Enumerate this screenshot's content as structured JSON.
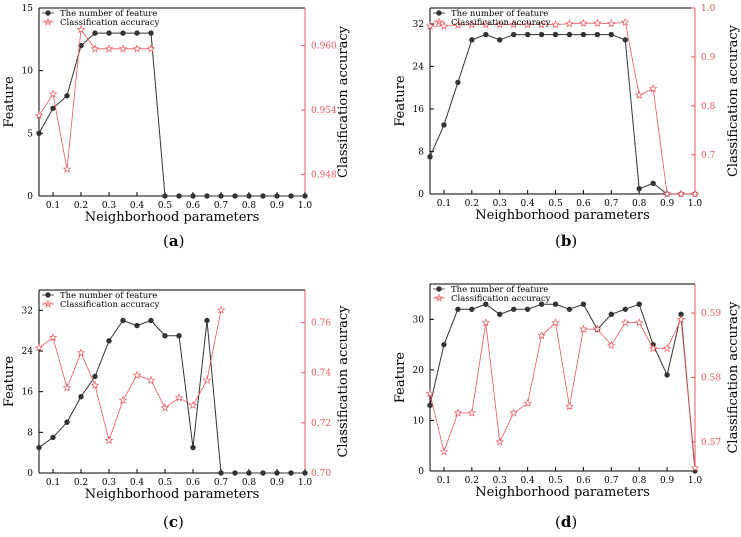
{
  "figure": {
    "panels": [
      {
        "label_open": "(",
        "label_letter": "a",
        "label_close": ")"
      },
      {
        "label_open": "(",
        "label_letter": "b",
        "label_close": ")"
      },
      {
        "label_open": "(",
        "label_letter": "c",
        "label_close": ")"
      },
      {
        "label_open": "(",
        "label_letter": "d",
        "label_close": ")"
      }
    ]
  },
  "chart_data": [
    {
      "type": "line",
      "xlabel": "Neighborhood parameters",
      "ylabel_left": "Feature",
      "ylabel_right": "Classification accuracy",
      "x_ticks": [
        "0.1",
        "0.2",
        "0.3",
        "0.4",
        "0.5",
        "0.6",
        "0.7",
        "0.8",
        "0.9",
        "1.0"
      ],
      "xlim": [
        0.05,
        1.0
      ],
      "left_ticks": [
        "0",
        "5",
        "10",
        "15"
      ],
      "left_ylim": [
        0,
        15
      ],
      "right_ticks": [
        "0.948",
        "0.954",
        "0.960"
      ],
      "right_ylim": [
        0.946,
        0.9635
      ],
      "legend": [
        "The number of feature",
        "Classification accuracy"
      ],
      "colors": {
        "feature": "#333333",
        "accuracy": "#e8595f",
        "right_axis": "#e8595f"
      },
      "series": [
        {
          "name": "The number of feature",
          "axis": "left",
          "marker": "dot",
          "x": [
            0.05,
            0.1,
            0.15,
            0.2,
            0.25,
            0.3,
            0.35,
            0.4,
            0.45,
            0.5,
            0.55,
            0.6,
            0.65,
            0.7,
            0.75,
            0.8,
            0.85,
            0.9,
            0.95,
            1.0
          ],
          "values": [
            5,
            7,
            8,
            12,
            13,
            13,
            13,
            13,
            13,
            0,
            0,
            0,
            0,
            0,
            0,
            0,
            0,
            0,
            0,
            0
          ]
        },
        {
          "name": "Classification accuracy",
          "axis": "right",
          "marker": "star",
          "x": [
            0.05,
            0.1,
            0.15,
            0.2,
            0.25,
            0.3,
            0.35,
            0.4,
            0.45
          ],
          "values": [
            0.9535,
            0.9555,
            0.9485,
            0.9615,
            0.9597,
            0.9597,
            0.9597,
            0.9597,
            0.9597
          ]
        }
      ]
    },
    {
      "type": "line",
      "xlabel": "Neighborhood parameters",
      "ylabel_left": "Feature",
      "ylabel_right": "Classification accuracy",
      "x_ticks": [
        "0.1",
        "0.2",
        "0.3",
        "0.4",
        "0.5",
        "0.6",
        "0.7",
        "0.8",
        "0.9",
        "1.0"
      ],
      "xlim": [
        0.05,
        1.0
      ],
      "left_ticks": [
        "0",
        "8",
        "16",
        "24",
        "32"
      ],
      "left_ylim": [
        0,
        35
      ],
      "right_ticks": [
        "0.7",
        "0.8",
        "0.9",
        "1.0"
      ],
      "right_ylim": [
        0.62,
        1.0
      ],
      "legend": [
        "The number of feature",
        "Classification accuracy"
      ],
      "colors": {
        "feature": "#333333",
        "accuracy": "#e8595f",
        "right_axis": "#e8595f"
      },
      "series": [
        {
          "name": "The number of feature",
          "axis": "left",
          "marker": "dot",
          "x": [
            0.05,
            0.1,
            0.15,
            0.2,
            0.25,
            0.3,
            0.35,
            0.4,
            0.45,
            0.5,
            0.55,
            0.6,
            0.65,
            0.7,
            0.75,
            0.8,
            0.85,
            0.9,
            0.95,
            1.0
          ],
          "values": [
            7,
            13,
            21,
            29,
            30,
            29,
            30,
            30,
            30,
            30,
            30,
            30,
            30,
            30,
            29,
            1,
            2,
            0,
            0,
            0
          ]
        },
        {
          "name": "Classification accuracy",
          "axis": "right",
          "marker": "star",
          "x": [
            0.05,
            0.1,
            0.15,
            0.2,
            0.25,
            0.3,
            0.35,
            0.4,
            0.45,
            0.5,
            0.55,
            0.6,
            0.65,
            0.7,
            0.75,
            0.8,
            0.85,
            0.9,
            0.95,
            1.0
          ],
          "values": [
            0.963,
            0.963,
            0.965,
            0.966,
            0.966,
            0.966,
            0.966,
            0.966,
            0.966,
            0.966,
            0.968,
            0.969,
            0.969,
            0.968,
            0.971,
            0.822,
            0.835,
            0.62,
            0.62,
            0.62
          ]
        }
      ]
    },
    {
      "type": "line",
      "xlabel": "Neighborhood parameters",
      "ylabel_left": "Feature",
      "ylabel_right": "Classification accuracy",
      "x_ticks": [
        "0.1",
        "0.2",
        "0.3",
        "0.4",
        "0.5",
        "0.6",
        "0.7",
        "0.8",
        "0.9",
        "1.0"
      ],
      "xlim": [
        0.05,
        1.0
      ],
      "left_ticks": [
        "0",
        "8",
        "16",
        "24",
        "32"
      ],
      "left_ylim": [
        0,
        36
      ],
      "right_ticks": [
        "0.70",
        "0.72",
        "0.74",
        "0.76"
      ],
      "right_ylim": [
        0.7,
        0.773
      ],
      "legend": [
        "The number of feature",
        "Classification accuracy"
      ],
      "colors": {
        "feature": "#333333",
        "accuracy": "#e8595f",
        "right_axis": "#e8595f"
      },
      "series": [
        {
          "name": "The number of feature",
          "axis": "left",
          "marker": "dot",
          "x": [
            0.05,
            0.1,
            0.15,
            0.2,
            0.25,
            0.3,
            0.35,
            0.4,
            0.45,
            0.5,
            0.55,
            0.6,
            0.65,
            0.7,
            0.75,
            0.8,
            0.85,
            0.9,
            0.95,
            1.0
          ],
          "values": [
            5,
            7,
            10,
            15,
            19,
            26,
            30,
            29,
            30,
            27,
            27,
            5,
            30,
            0,
            0,
            0,
            0,
            0,
            0,
            0
          ]
        },
        {
          "name": "Classification accuracy",
          "axis": "right",
          "marker": "star",
          "x": [
            0.05,
            0.1,
            0.15,
            0.2,
            0.25,
            0.3,
            0.35,
            0.4,
            0.45,
            0.5,
            0.55,
            0.6,
            0.65,
            0.7
          ],
          "values": [
            0.75,
            0.754,
            0.734,
            0.748,
            0.735,
            0.713,
            0.729,
            0.739,
            0.737,
            0.726,
            0.73,
            0.727,
            0.737,
            0.765
          ]
        }
      ]
    },
    {
      "type": "line",
      "xlabel": "Neighborhood parameters",
      "ylabel_left": "Feature",
      "ylabel_right": "Classification accuracy",
      "x_ticks": [
        "0.1",
        "0.2",
        "0.3",
        "0.4",
        "0.5",
        "0.6",
        "0.7",
        "0.8",
        "0.9",
        "1.0"
      ],
      "xlim": [
        0.05,
        1.0
      ],
      "left_ticks": [
        "0",
        "10",
        "20",
        "30"
      ],
      "left_ylim": [
        0,
        37
      ],
      "right_ticks": [
        "0.57",
        "0.58",
        "0.59"
      ],
      "right_ylim": [
        0.5655,
        0.5945
      ],
      "legend": [
        "The number of feature",
        "Classification accuracy"
      ],
      "colors": {
        "feature": "#333333",
        "accuracy": "#e8595f",
        "right_axis": "#e8595f"
      },
      "series": [
        {
          "name": "The number of feature",
          "axis": "left",
          "marker": "dot",
          "x": [
            0.05,
            0.1,
            0.15,
            0.2,
            0.25,
            0.3,
            0.35,
            0.4,
            0.45,
            0.5,
            0.55,
            0.6,
            0.65,
            0.7,
            0.75,
            0.8,
            0.85,
            0.9,
            0.95,
            1.0
          ],
          "values": [
            13,
            25,
            32,
            32,
            33,
            31,
            32,
            32,
            33,
            33,
            32,
            33,
            28,
            31,
            32,
            33,
            25,
            19,
            31,
            0
          ]
        },
        {
          "name": "Classification accuracy",
          "axis": "right",
          "marker": "star",
          "x": [
            0.05,
            0.1,
            0.15,
            0.2,
            0.25,
            0.3,
            0.35,
            0.4,
            0.45,
            0.5,
            0.55,
            0.6,
            0.65,
            0.7,
            0.75,
            0.8,
            0.85,
            0.9,
            0.95,
            1.0
          ],
          "values": [
            0.5775,
            0.5685,
            0.5745,
            0.5745,
            0.5885,
            0.57,
            0.5745,
            0.576,
            0.5865,
            0.5885,
            0.5755,
            0.5875,
            0.5875,
            0.585,
            0.5885,
            0.5885,
            0.5845,
            0.5845,
            0.589,
            0.566
          ]
        }
      ]
    }
  ]
}
